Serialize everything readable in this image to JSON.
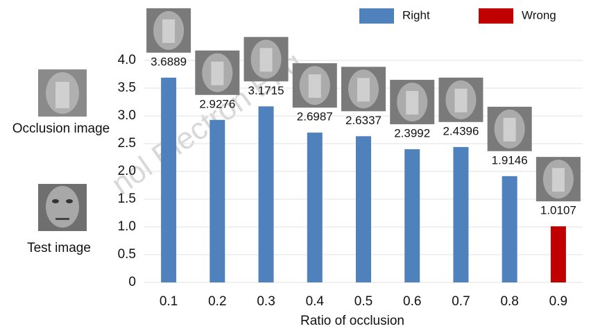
{
  "chart_data": {
    "type": "bar",
    "x_label": "Ratio of occlusion",
    "side_labels": [
      "Occlusion image",
      "Test image"
    ],
    "watermark": "nol Electron Eng",
    "categories": [
      "0.1",
      "0.2",
      "0.3",
      "0.4",
      "0.5",
      "0.6",
      "0.7",
      "0.8",
      "0.9"
    ],
    "series": [
      {
        "name": "Right",
        "color": "#4f81bd",
        "values": [
          3.6889,
          2.9276,
          3.1715,
          2.6987,
          2.6337,
          2.3992,
          2.4396,
          1.9146,
          null
        ]
      },
      {
        "name": "Wrong",
        "color": "#c00000",
        "values": [
          null,
          null,
          null,
          null,
          null,
          null,
          null,
          null,
          1.0107
        ]
      }
    ],
    "ylim": [
      0,
      4
    ],
    "yticks": [
      0,
      {
        "value": 0.5,
        "label": "0.5"
      },
      {
        "value": 1,
        "label": "1.0"
      },
      {
        "value": 1.5,
        "label": "1.5"
      },
      {
        "value": 2,
        "label": "2.0"
      },
      {
        "value": 2.5,
        "label": "2.5"
      },
      {
        "value": 3,
        "label": "3.0"
      },
      {
        "value": 3.5,
        "label": "3.5"
      },
      {
        "value": 4,
        "label": "4.0"
      }
    ],
    "grid": true
  }
}
